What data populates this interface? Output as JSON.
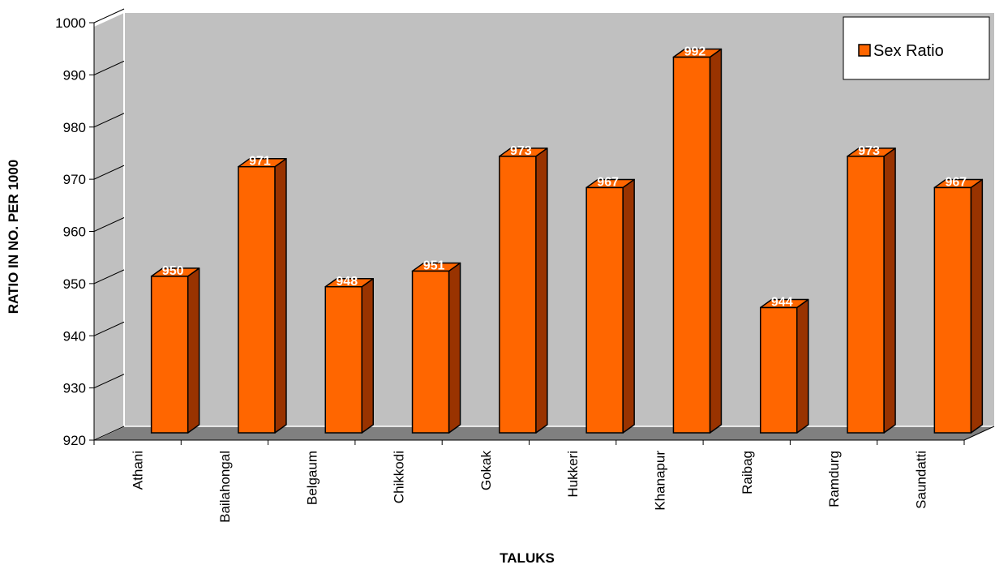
{
  "chart_data": {
    "type": "bar",
    "categories": [
      "Athani",
      "Bailahongal",
      "Belgaum",
      "Chikkodi",
      "Gokak",
      "Hukkeri",
      "Khanapur",
      "Raibag",
      "Ramdurg",
      "Saundatti"
    ],
    "series": [
      {
        "name": "Sex Ratio",
        "values": [
          950,
          971,
          948,
          951,
          973,
          967,
          992,
          944,
          973,
          967
        ]
      }
    ],
    "data_labels": [
      "950",
      "971",
      "948",
      "951",
      "973",
      "967",
      "992",
      "944",
      "973",
      "967"
    ],
    "xlabel": "TALUKS",
    "ylabel": "RATIO IN NO. PER 1000",
    "ylim": [
      920,
      1000
    ],
    "yticks": [
      920,
      930,
      940,
      950,
      960,
      970,
      980,
      990,
      1000
    ],
    "ytick_labels": [
      "920",
      "930",
      "940",
      "950",
      "960",
      "970",
      "980",
      "990",
      "1000"
    ],
    "grid": false,
    "three_d": true,
    "legend_position": "top-right",
    "colors": {
      "bar_front": "#FF6600",
      "bar_side": "#993300",
      "bar_top": "#FF6600",
      "back_wall": "#C0C0C0",
      "floor": "#808080",
      "legend_swatch": "#FF6600"
    }
  }
}
